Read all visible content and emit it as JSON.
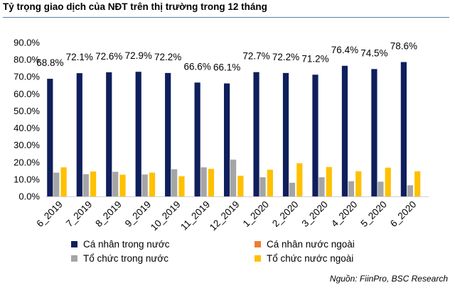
{
  "chart_data": {
    "type": "bar",
    "title": "Tỷ trọng giao dịch của NĐT trên thị trường trong 12 tháng",
    "categories": [
      "6_2019",
      "7_2019",
      "8_2019",
      "9_2019",
      "10_2019",
      "11_2019",
      "12_2019",
      "1_2020",
      "2_2020",
      "3_2020",
      "4_2020",
      "5_2020",
      "6_2020"
    ],
    "ylim": [
      0,
      90
    ],
    "yticks": [
      "0.0%",
      "10.0%",
      "20.0%",
      "30.0%",
      "40.0%",
      "50.0%",
      "60.0%",
      "70.0%",
      "80.0%",
      "90.0%"
    ],
    "grid": false,
    "legend_position": "bottom",
    "series": [
      {
        "name": "Cá nhân trong nước",
        "color": "#0f1f5c",
        "values": [
          68.8,
          72.1,
          72.6,
          72.9,
          72.2,
          66.6,
          66.1,
          72.7,
          72.2,
          71.2,
          76.4,
          74.5,
          78.6
        ],
        "labels": [
          "68.8%",
          "72.1%",
          "72.6%",
          "72.9%",
          "72.2%",
          "66.6%",
          "66.1%",
          "72.7%",
          "72.2%",
          "71.2%",
          "76.4%",
          "74.5%",
          "78.6%"
        ]
      },
      {
        "name": "Cá nhân nước ngoài",
        "color": "#ed7d31",
        "values": [
          0.3,
          0.3,
          0.3,
          0.3,
          0.3,
          0.3,
          0.3,
          0.3,
          0.3,
          0.3,
          0.3,
          0.3,
          0.3
        ]
      },
      {
        "name": "Tổ chức trong nước",
        "color": "#a5a5a5",
        "values": [
          13.9,
          13.0,
          14.4,
          12.8,
          15.9,
          17.0,
          21.5,
          11.2,
          8.0,
          11.2,
          8.9,
          8.6,
          6.5
        ]
      },
      {
        "name": "Tổ chức nước ngoài",
        "color": "#ffc000",
        "values": [
          17.0,
          14.6,
          12.7,
          13.9,
          11.8,
          16.1,
          12.1,
          15.6,
          19.4,
          17.2,
          14.7,
          16.8,
          14.7
        ]
      }
    ]
  },
  "source": "Nguồn: FiinPro, BSC Research"
}
